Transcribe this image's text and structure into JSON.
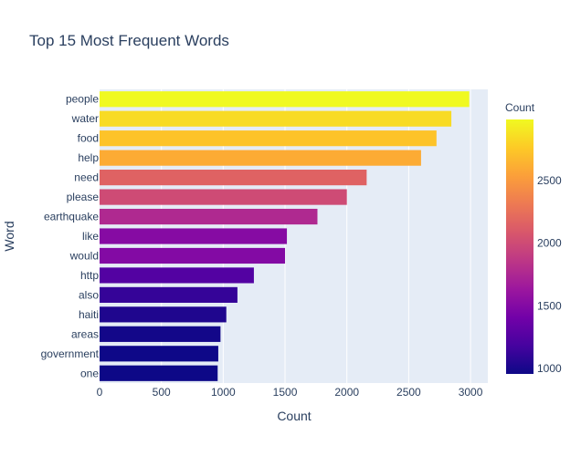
{
  "chart_data": {
    "type": "bar",
    "orientation": "horizontal",
    "title": "Top 15 Most Frequent Words",
    "xlabel": "Count",
    "ylabel": "Word",
    "categories": [
      "people",
      "water",
      "food",
      "help",
      "need",
      "please",
      "earthquake",
      "like",
      "would",
      "http",
      "also",
      "haiti",
      "areas",
      "government",
      "one"
    ],
    "values": [
      2990,
      2845,
      2725,
      2600,
      2160,
      2000,
      1762,
      1515,
      1500,
      1248,
      1115,
      1025,
      978,
      960,
      955
    ],
    "xlim": [
      0,
      3140
    ],
    "xticks": [
      0,
      500,
      1000,
      1500,
      2000,
      2500,
      3000
    ],
    "grid": true,
    "plot_background": "#e5ecf6",
    "colorbar": {
      "title": "Count",
      "range": [
        955,
        2990
      ],
      "ticks": [
        1000,
        1500,
        2000,
        2500
      ],
      "colorscale": [
        "#0d0887",
        "#46039f",
        "#7201a8",
        "#9c179e",
        "#bd3786",
        "#d8576b",
        "#ed7953",
        "#fb9f3a",
        "#fdca26",
        "#f0f921"
      ]
    }
  }
}
